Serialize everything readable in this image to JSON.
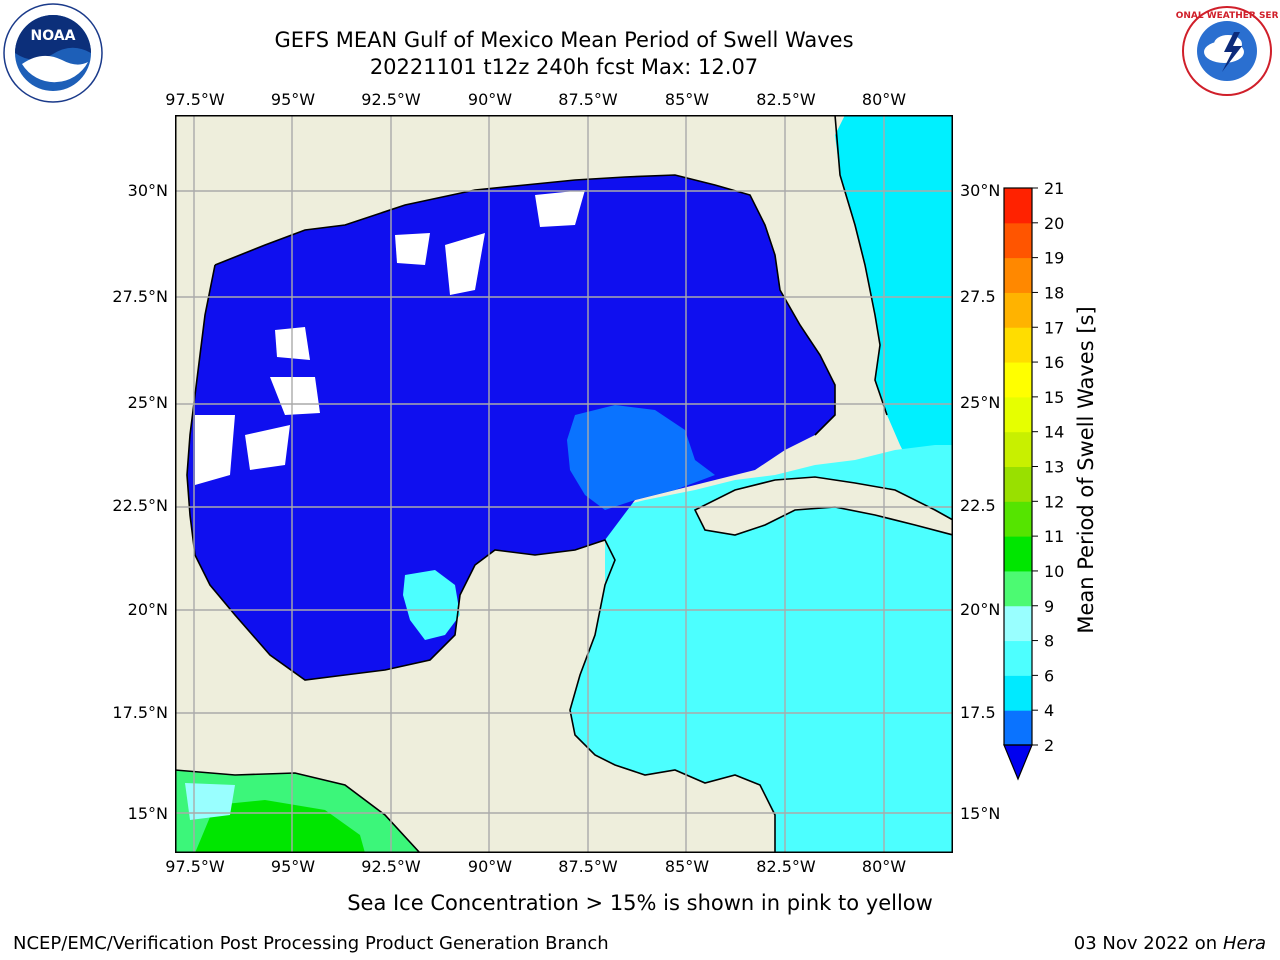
{
  "title": {
    "line1": "GEFS MEAN Gulf of Mexico Mean Period of Swell Waves",
    "line2": "20221101 t12z 240h fcst   Max: 12.07"
  },
  "axes": {
    "lon_labels": [
      "97.5°W",
      "95°W",
      "92.5°W",
      "90°W",
      "87.5°W",
      "85°W",
      "82.5°W",
      "80°W"
    ],
    "lat_labels_left": [
      "30°N",
      "27.5°N",
      "25°N",
      "22.5°N",
      "20°N",
      "17.5°N",
      "15°N"
    ],
    "lat_labels_right": [
      "30°N",
      "27.5",
      "25°N",
      "22.5",
      "20°N",
      "17.5",
      "15°N"
    ]
  },
  "colorbar": {
    "title": "Mean Period of Swell Waves [s]",
    "levels": [
      "2",
      "4",
      "6",
      "8",
      "9",
      "10",
      "11",
      "12",
      "13",
      "14",
      "15",
      "16",
      "17",
      "18",
      "19",
      "20",
      "21"
    ],
    "colors": [
      "#0a73ff",
      "#00eaff",
      "#4dffff",
      "#99ffff",
      "#4cfa72",
      "#00e600",
      "#55e400",
      "#99e000",
      "#c8f000",
      "#e6ff00",
      "#ffff00",
      "#ffdd00",
      "#ffb300",
      "#ff8800",
      "#ff5500",
      "#ff2200"
    ],
    "below_color": "#0000f0"
  },
  "colors": {
    "land": "#eeeedc",
    "gulf_deep": "#0f0fef",
    "caribbean": "#4cffff",
    "atlantic": "#00f0ff",
    "pacific_green": "#3cf67a"
  },
  "note": "Sea Ice Concentration > 15% is shown in pink to yellow",
  "footer": {
    "left": "NCEP/EMC/Verification Post Processing Product Generation Branch",
    "right_date": "03 Nov 2022 on",
    "right_host": "Hera"
  },
  "logos": {
    "left": "noaa-logo",
    "right": "nws-logo",
    "nws_text": "NATIONAL WEATHER SERVICE"
  }
}
